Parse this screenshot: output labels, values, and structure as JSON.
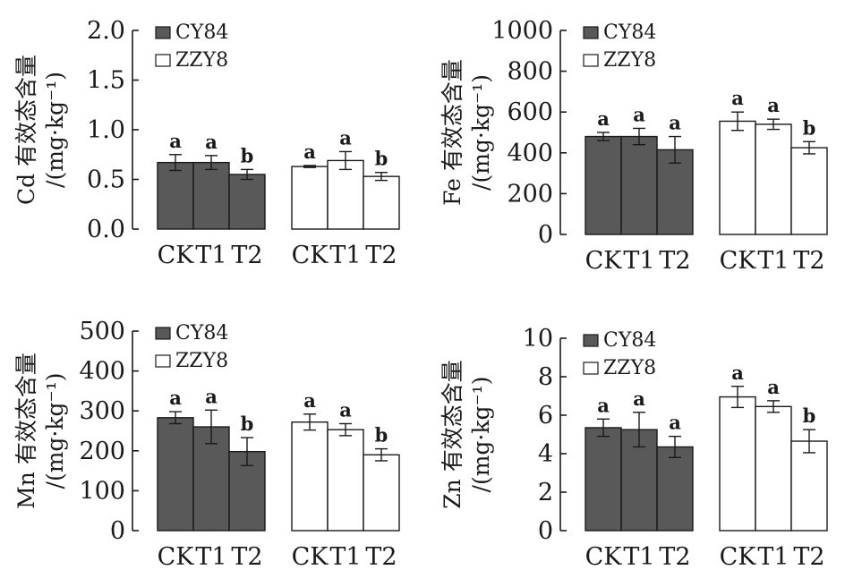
{
  "chart_data": [
    {
      "type": "bar",
      "ylabel_element": "Cd",
      "ylabel_main": "有效态含量",
      "ylabel_unit": "/(mg·kg⁻¹)",
      "ylim": [
        0,
        2.0
      ],
      "yticks": [
        "0.0",
        "0.5",
        "1.0",
        "1.5",
        "2.0"
      ],
      "categories": [
        "CK",
        "T1",
        "T2"
      ],
      "series": [
        {
          "name": "CY84",
          "color": "#595959",
          "values": [
            0.67,
            0.67,
            0.55
          ],
          "errors": [
            0.08,
            0.07,
            0.05
          ],
          "letters": [
            "a",
            "a",
            "b"
          ]
        },
        {
          "name": "ZZY8",
          "color": "#ffffff",
          "values": [
            0.63,
            0.69,
            0.53
          ],
          "errors": [
            0.01,
            0.09,
            0.04
          ],
          "letters": [
            "a",
            "a",
            "b"
          ]
        }
      ]
    },
    {
      "type": "bar",
      "ylabel_element": "Fe",
      "ylabel_main": "有效态含量",
      "ylabel_unit": "/(mg·kg⁻¹)",
      "ylim": [
        0,
        1000
      ],
      "yticks": [
        "0",
        "200",
        "400",
        "600",
        "800",
        "1000"
      ],
      "categories": [
        "CK",
        "T1",
        "T2"
      ],
      "series": [
        {
          "name": "CY84",
          "color": "#595959",
          "values": [
            480,
            480,
            415
          ],
          "errors": [
            20,
            40,
            65
          ],
          "letters": [
            "a",
            "a",
            "a"
          ]
        },
        {
          "name": "ZZY8",
          "color": "#ffffff",
          "values": [
            555,
            540,
            425
          ],
          "errors": [
            45,
            25,
            30
          ],
          "letters": [
            "a",
            "a",
            "b"
          ]
        }
      ]
    },
    {
      "type": "bar",
      "ylabel_element": "Mn",
      "ylabel_main": "有效态含量",
      "ylabel_unit": "/(mg·kg⁻¹)",
      "ylim": [
        0,
        500
      ],
      "yticks": [
        "0",
        "100",
        "200",
        "300",
        "400",
        "500"
      ],
      "categories": [
        "CK",
        "T1",
        "T2"
      ],
      "series": [
        {
          "name": "CY84",
          "color": "#595959",
          "values": [
            283,
            260,
            198
          ],
          "errors": [
            15,
            42,
            35
          ],
          "letters": [
            "a",
            "a",
            "b"
          ]
        },
        {
          "name": "ZZY8",
          "color": "#ffffff",
          "values": [
            272,
            253,
            190
          ],
          "errors": [
            20,
            15,
            15
          ],
          "letters": [
            "a",
            "a",
            "b"
          ]
        }
      ]
    },
    {
      "type": "bar",
      "ylabel_element": "Zn",
      "ylabel_main": "有效态含量",
      "ylabel_unit": "/(mg·kg⁻¹)",
      "ylim": [
        0,
        10
      ],
      "yticks": [
        "0",
        "2",
        "4",
        "6",
        "8",
        "10"
      ],
      "categories": [
        "CK",
        "T1",
        "T2"
      ],
      "series": [
        {
          "name": "CY84",
          "color": "#595959",
          "values": [
            5.35,
            5.25,
            4.35
          ],
          "errors": [
            0.45,
            0.9,
            0.55
          ],
          "letters": [
            "a",
            "a",
            "a"
          ]
        },
        {
          "name": "ZZY8",
          "color": "#ffffff",
          "values": [
            6.95,
            6.45,
            4.65
          ],
          "errors": [
            0.55,
            0.3,
            0.6
          ],
          "letters": [
            "a",
            "a",
            "b"
          ]
        }
      ]
    }
  ]
}
